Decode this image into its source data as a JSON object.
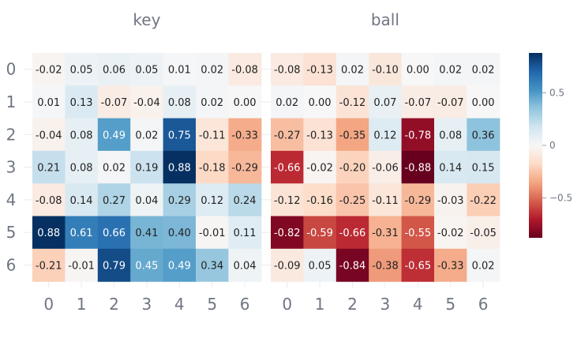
{
  "chart_data": {
    "type": "heatmap",
    "x_ticks": [
      "0",
      "1",
      "2",
      "3",
      "4",
      "5",
      "6"
    ],
    "y_ticks": [
      "0",
      "1",
      "2",
      "3",
      "4",
      "5",
      "6"
    ],
    "panels": [
      {
        "title": "key",
        "values": [
          [
            -0.02,
            0.05,
            0.06,
            0.05,
            0.01,
            0.02,
            -0.08
          ],
          [
            0.01,
            0.13,
            -0.07,
            -0.04,
            0.08,
            0.02,
            0.0
          ],
          [
            -0.04,
            0.08,
            0.49,
            0.02,
            0.75,
            -0.11,
            -0.33
          ],
          [
            0.21,
            0.08,
            0.02,
            0.19,
            0.88,
            -0.18,
            -0.29
          ],
          [
            -0.08,
            0.14,
            0.27,
            0.04,
            0.29,
            0.12,
            0.24
          ],
          [
            0.88,
            0.61,
            0.66,
            0.41,
            0.4,
            -0.01,
            0.11
          ],
          [
            -0.21,
            -0.01,
            0.79,
            0.45,
            0.49,
            0.34,
            0.04
          ]
        ],
        "labels": [
          [
            "-0.02",
            "0.05",
            "0.06",
            "0.05",
            "0.01",
            "0.02",
            "-0.08"
          ],
          [
            "0.01",
            "0.13",
            "-0.07",
            "-0.04",
            "0.08",
            "0.02",
            "0.00"
          ],
          [
            "-0.04",
            "0.08",
            "0.49",
            "0.02",
            "0.75",
            "-0.11",
            "-0.33"
          ],
          [
            "0.21",
            "0.08",
            "0.02",
            "0.19",
            "0.88",
            "-0.18",
            "-0.29"
          ],
          [
            "-0.08",
            "0.14",
            "0.27",
            "0.04",
            "0.29",
            "0.12",
            "0.24"
          ],
          [
            "0.88",
            "0.61",
            "0.66",
            "0.41",
            "0.40",
            "-0.01",
            "0.11"
          ],
          [
            "-0.21",
            "-0.01",
            "0.79",
            "0.45",
            "0.49",
            "0.34",
            "0.04"
          ]
        ]
      },
      {
        "title": "ball",
        "values": [
          [
            -0.08,
            -0.13,
            0.02,
            -0.1,
            0.0,
            0.02,
            0.02
          ],
          [
            0.02,
            0.0,
            -0.12,
            0.07,
            -0.07,
            -0.07,
            0.0
          ],
          [
            -0.27,
            -0.13,
            -0.35,
            0.12,
            -0.78,
            0.08,
            0.36
          ],
          [
            -0.66,
            -0.02,
            -0.2,
            -0.06,
            -0.88,
            0.14,
            0.15
          ],
          [
            -0.12,
            -0.16,
            -0.25,
            -0.11,
            -0.29,
            -0.03,
            -0.22
          ],
          [
            -0.82,
            -0.59,
            -0.66,
            -0.31,
            -0.55,
            -0.02,
            -0.05
          ],
          [
            -0.09,
            0.05,
            -0.84,
            -0.38,
            -0.65,
            -0.33,
            0.02
          ]
        ],
        "labels": [
          [
            "-0.08",
            "-0.13",
            "0.02",
            "-0.10",
            "0.00",
            "0.02",
            "0.02"
          ],
          [
            "0.02",
            "0.00",
            "-0.12",
            "0.07",
            "-0.07",
            "-0.07",
            "0.00"
          ],
          [
            "-0.27",
            "-0.13",
            "-0.35",
            "0.12",
            "-0.78",
            "0.08",
            "0.36"
          ],
          [
            "-0.66",
            "-0.02",
            "-0.20",
            "-0.06",
            "-0.88",
            "0.14",
            "0.15"
          ],
          [
            "-0.12",
            "-0.16",
            "-0.25",
            "-0.11",
            "-0.29",
            "-0.03",
            "-0.22"
          ],
          [
            "-0.82",
            "-0.59",
            "-0.66",
            "-0.31",
            "-0.55",
            "-0.02",
            "-0.05"
          ],
          [
            "-0.09",
            "0.05",
            "-0.84",
            "-0.38",
            "-0.65",
            "-0.33",
            "0.02"
          ]
        ]
      }
    ],
    "colorscale": "RdBu",
    "zmin": -0.88,
    "zmax": 0.88,
    "colorbar": {
      "tick_values": [
        0.5,
        0,
        -0.5
      ],
      "tick_labels": [
        "0.5",
        "0",
        "−0.5"
      ]
    }
  }
}
